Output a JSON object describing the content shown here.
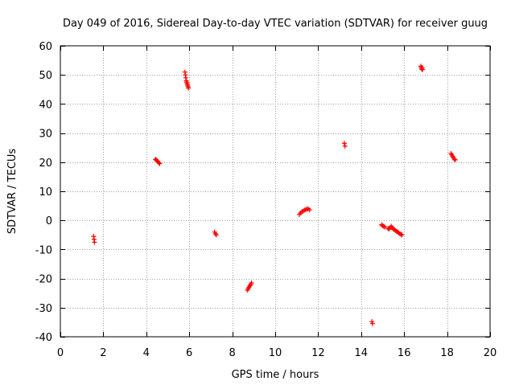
{
  "chart_data": {
    "type": "scatter",
    "title": "Day 049 of 2016, Sidereal Day-to-day VTEC variation (SDTVAR) for receiver guug",
    "xlabel": "GPS time / hours",
    "ylabel": "SDTVAR / TECUs",
    "xlim": [
      0,
      20
    ],
    "ylim": [
      -40,
      60
    ],
    "xticks": [
      0,
      2,
      4,
      6,
      8,
      10,
      12,
      14,
      16,
      18,
      20
    ],
    "yticks": [
      -40,
      -30,
      -20,
      -10,
      0,
      10,
      20,
      30,
      40,
      50,
      60
    ],
    "grid": true,
    "marker": "plus",
    "colors": {
      "series": "#ff0000",
      "axes": "#000000",
      "grid": "#a0a0a0"
    },
    "series": [
      {
        "name": "SDTVAR",
        "x": [
          1.55,
          1.57,
          1.59,
          4.42,
          4.46,
          4.5,
          4.54,
          4.58,
          4.62,
          5.8,
          5.82,
          5.84,
          5.86,
          5.88,
          5.9,
          5.92,
          5.94,
          5.96,
          7.18,
          7.22,
          7.26,
          8.7,
          8.74,
          8.78,
          8.82,
          8.86,
          8.9,
          11.12,
          11.18,
          11.24,
          11.3,
          11.36,
          11.42,
          11.48,
          11.54,
          11.6,
          13.22,
          13.25,
          14.5,
          14.53,
          14.95,
          15.0,
          15.05,
          15.1,
          15.25,
          15.3,
          15.35,
          15.4,
          15.45,
          15.5,
          15.55,
          15.6,
          15.65,
          15.7,
          15.75,
          15.8,
          15.85,
          15.9,
          16.78,
          16.8,
          16.82,
          16.84,
          16.86,
          18.18,
          18.22,
          18.26,
          18.3,
          18.34,
          18.38
        ],
        "y": [
          -5.5,
          -6.5,
          -7.5,
          21.0,
          20.8,
          20.5,
          20.2,
          19.8,
          19.5,
          51.0,
          50.0,
          49.0,
          48.0,
          47.5,
          47.0,
          46.5,
          46.0,
          45.5,
          -4.0,
          -4.6,
          -5.0,
          -24.0,
          -23.5,
          -23.0,
          -22.5,
          -22.0,
          -21.5,
          2.0,
          2.5,
          3.0,
          3.2,
          3.5,
          3.7,
          3.9,
          4.0,
          3.6,
          26.5,
          25.5,
          -34.8,
          -35.5,
          -1.5,
          -1.8,
          -2.0,
          -2.3,
          -2.8,
          -3.0,
          -2.5,
          -2.0,
          -2.5,
          -3.0,
          -3.2,
          -3.5,
          -3.8,
          -4.0,
          -4.3,
          -4.6,
          -4.8,
          -5.0,
          53.0,
          52.5,
          52.0,
          52.5,
          51.8,
          23.0,
          22.5,
          22.0,
          21.5,
          21.0,
          20.8
        ]
      }
    ]
  }
}
